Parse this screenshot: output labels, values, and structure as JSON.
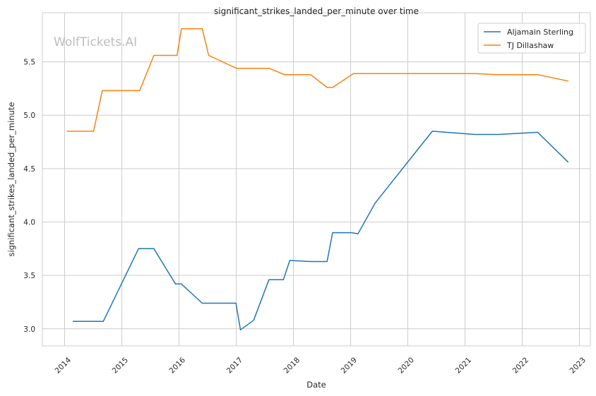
{
  "chart_data": {
    "type": "line",
    "title": "significant_strikes_landed_per_minute over time",
    "xlabel": "Date",
    "ylabel": "significant_strikes_landed_per_minute",
    "watermark": "WolfTickets.AI",
    "xlim": [
      "2013-08-12",
      "2023-03-12"
    ],
    "ylim": [
      2.84,
      5.96
    ],
    "x_ticks": [
      "2014",
      "2015",
      "2016",
      "2017",
      "2018",
      "2019",
      "2020",
      "2021",
      "2022",
      "2023"
    ],
    "y_ticks": [
      "3.0",
      "3.5",
      "4.0",
      "4.5",
      "5.0",
      "5.5"
    ],
    "y_tick_values": [
      3.0,
      3.5,
      4.0,
      4.5,
      5.0,
      5.5
    ],
    "grid": true,
    "legend_position": "top-right",
    "series": [
      {
        "name": "Aljamain Sterling",
        "color": "#1f77b4",
        "points": [
          {
            "x": "2014-02-22",
            "y": 3.07
          },
          {
            "x": "2014-09-05",
            "y": 3.07
          },
          {
            "x": "2015-04-18",
            "y": 3.75
          },
          {
            "x": "2015-07-25",
            "y": 3.75
          },
          {
            "x": "2015-12-10",
            "y": 3.42
          },
          {
            "x": "2016-01-17",
            "y": 3.42
          },
          {
            "x": "2016-05-29",
            "y": 3.24
          },
          {
            "x": "2016-12-30",
            "y": 3.24
          },
          {
            "x": "2017-01-28",
            "y": 2.99
          },
          {
            "x": "2017-04-22",
            "y": 3.08
          },
          {
            "x": "2017-07-29",
            "y": 3.46
          },
          {
            "x": "2017-10-29",
            "y": 3.46
          },
          {
            "x": "2017-12-09",
            "y": 3.64
          },
          {
            "x": "2018-04-21",
            "y": 3.63
          },
          {
            "x": "2018-08-04",
            "y": 3.63
          },
          {
            "x": "2018-09-08",
            "y": 3.9
          },
          {
            "x": "2019-01-08",
            "y": 3.9
          },
          {
            "x": "2019-02-17",
            "y": 3.89
          },
          {
            "x": "2019-06-08",
            "y": 4.18
          },
          {
            "x": "2020-06-06",
            "y": 4.85
          },
          {
            "x": "2021-03-06",
            "y": 4.82
          },
          {
            "x": "2021-07-31",
            "y": 4.82
          },
          {
            "x": "2022-04-09",
            "y": 4.84
          },
          {
            "x": "2022-10-22",
            "y": 4.56
          }
        ]
      },
      {
        "name": "TJ Dillashaw",
        "color": "#ff7f0e",
        "points": [
          {
            "x": "2014-01-15",
            "y": 4.85
          },
          {
            "x": "2014-07-05",
            "y": 4.85
          },
          {
            "x": "2014-08-30",
            "y": 5.23
          },
          {
            "x": "2015-04-25",
            "y": 5.23
          },
          {
            "x": "2015-07-25",
            "y": 5.56
          },
          {
            "x": "2015-12-20",
            "y": 5.56
          },
          {
            "x": "2016-01-17",
            "y": 5.81
          },
          {
            "x": "2016-05-29",
            "y": 5.81
          },
          {
            "x": "2016-07-09",
            "y": 5.56
          },
          {
            "x": "2017-01-01",
            "y": 5.44
          },
          {
            "x": "2017-07-29",
            "y": 5.44
          },
          {
            "x": "2017-11-04",
            "y": 5.38
          },
          {
            "x": "2018-04-21",
            "y": 5.38
          },
          {
            "x": "2018-08-04",
            "y": 5.26
          },
          {
            "x": "2018-09-08",
            "y": 5.26
          },
          {
            "x": "2019-01-19",
            "y": 5.39
          },
          {
            "x": "2021-03-06",
            "y": 5.39
          },
          {
            "x": "2021-07-24",
            "y": 5.38
          },
          {
            "x": "2022-04-09",
            "y": 5.38
          },
          {
            "x": "2022-10-22",
            "y": 5.32
          }
        ]
      }
    ]
  }
}
